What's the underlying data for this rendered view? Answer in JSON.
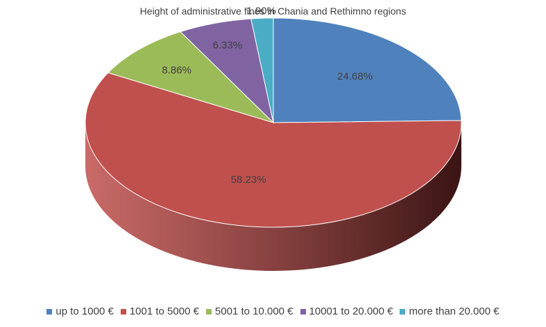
{
  "chart_data": {
    "type": "pie",
    "title": "Height of administrative fines in Chania and Rethimno regions",
    "categories": [
      "up to 1000 €",
      "1001 to 5000 €",
      "5001 to 10.000 €",
      "10001 to 20.000 €",
      "more than  20.000 €"
    ],
    "values": [
      24.68,
      58.23,
      8.86,
      6.33,
      1.9
    ],
    "data_labels": [
      "24.68%",
      "58.23%",
      "8.86%",
      "6.33%",
      "1.90%"
    ],
    "colors": [
      "#4F81BD",
      "#C0504D",
      "#9BBB59",
      "#8064A2",
      "#4BACC6"
    ],
    "style": "3d",
    "legend_position": "bottom"
  }
}
